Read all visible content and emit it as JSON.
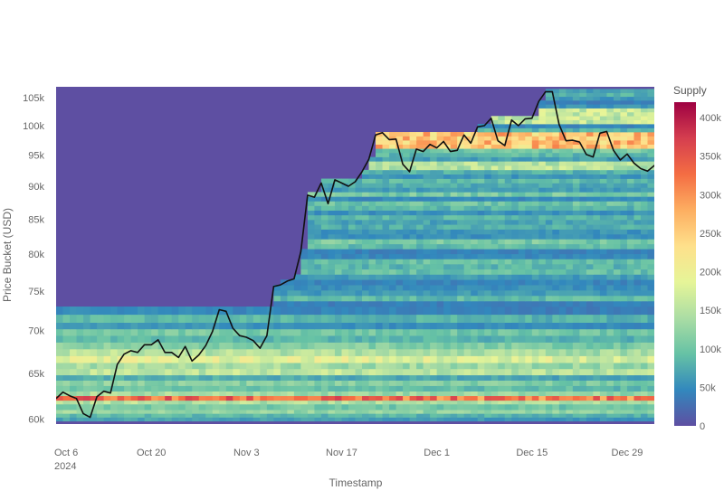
{
  "chart_data": {
    "type": "heatmap",
    "title": "",
    "xlabel": "Timestamp",
    "ylabel": "Price Bucket (USD)",
    "x_range": [
      "2024-10-06",
      "2025-01-02"
    ],
    "y_range": [
      59500,
      107000
    ],
    "y_scale": "log",
    "x_ticks": [
      {
        "date": "2024-10-06",
        "label": "Oct 6",
        "sublabel": "2024"
      },
      {
        "date": "2024-10-20",
        "label": "Oct 20",
        "sublabel": ""
      },
      {
        "date": "2024-11-03",
        "label": "Nov 3",
        "sublabel": ""
      },
      {
        "date": "2024-11-17",
        "label": "Nov 17",
        "sublabel": ""
      },
      {
        "date": "2024-12-01",
        "label": "Dec 1",
        "sublabel": ""
      },
      {
        "date": "2024-12-15",
        "label": "Dec 15",
        "sublabel": ""
      },
      {
        "date": "2024-12-29",
        "label": "Dec 29",
        "sublabel": ""
      }
    ],
    "y_ticks": [
      {
        "value": 60000,
        "label": "60k"
      },
      {
        "value": 65000,
        "label": "65k"
      },
      {
        "value": 70000,
        "label": "70k"
      },
      {
        "value": 75000,
        "label": "75k"
      },
      {
        "value": 80000,
        "label": "80k"
      },
      {
        "value": 85000,
        "label": "85k"
      },
      {
        "value": 90000,
        "label": "90k"
      },
      {
        "value": 95000,
        "label": "95k"
      },
      {
        "value": 100000,
        "label": "100k"
      },
      {
        "value": 105000,
        "label": "105k"
      }
    ],
    "colorbar": {
      "title": "Supply",
      "min": 0,
      "max": 420000,
      "colors": [
        "#5e4fa2",
        "#3288bd",
        "#66c2a5",
        "#abdda4",
        "#e6f598",
        "#fee08b",
        "#fdae61",
        "#f46d43",
        "#d53e4f",
        "#9e0142"
      ],
      "ticks": [
        {
          "value": 0,
          "label": "0"
        },
        {
          "value": 50000,
          "label": "50k"
        },
        {
          "value": 100000,
          "label": "100k"
        },
        {
          "value": 150000,
          "label": "150k"
        },
        {
          "value": 200000,
          "label": "200k"
        },
        {
          "value": 250000,
          "label": "250k"
        },
        {
          "value": 300000,
          "label": "300k"
        },
        {
          "value": 350000,
          "label": "350k"
        },
        {
          "value": 400000,
          "label": "400k"
        }
      ]
    },
    "price_line": {
      "color": "#111111",
      "points": [
        [
          "2024-10-06",
          62200
        ],
        [
          "2024-10-07",
          62900
        ],
        [
          "2024-10-08",
          62500
        ],
        [
          "2024-10-09",
          62200
        ],
        [
          "2024-10-10",
          60600
        ],
        [
          "2024-10-11",
          60200
        ],
        [
          "2024-10-12",
          62400
        ],
        [
          "2024-10-13",
          63000
        ],
        [
          "2024-10-14",
          62800
        ],
        [
          "2024-10-15",
          66000
        ],
        [
          "2024-10-16",
          67200
        ],
        [
          "2024-10-17",
          67600
        ],
        [
          "2024-10-18",
          67400
        ],
        [
          "2024-10-19",
          68300
        ],
        [
          "2024-10-20",
          68300
        ],
        [
          "2024-10-21",
          68900
        ],
        [
          "2024-10-22",
          67400
        ],
        [
          "2024-10-23",
          67400
        ],
        [
          "2024-10-24",
          66800
        ],
        [
          "2024-10-25",
          68100
        ],
        [
          "2024-10-26",
          66400
        ],
        [
          "2024-10-27",
          67100
        ],
        [
          "2024-10-28",
          68200
        ],
        [
          "2024-10-29",
          69900
        ],
        [
          "2024-10-30",
          72600
        ],
        [
          "2024-10-31",
          72400
        ],
        [
          "2024-11-01",
          70300
        ],
        [
          "2024-11-02",
          69400
        ],
        [
          "2024-11-03",
          69200
        ],
        [
          "2024-11-04",
          68800
        ],
        [
          "2024-11-05",
          67900
        ],
        [
          "2024-11-06",
          69400
        ],
        [
          "2024-11-07",
          75600
        ],
        [
          "2024-11-08",
          75800
        ],
        [
          "2024-11-09",
          76300
        ],
        [
          "2024-11-10",
          76600
        ],
        [
          "2024-11-11",
          80300
        ],
        [
          "2024-11-12",
          88600
        ],
        [
          "2024-11-13",
          88300
        ],
        [
          "2024-11-14",
          90500
        ],
        [
          "2024-11-15",
          87300
        ],
        [
          "2024-11-16",
          91000
        ],
        [
          "2024-11-17",
          90500
        ],
        [
          "2024-11-18",
          90000
        ],
        [
          "2024-11-19",
          90700
        ],
        [
          "2024-11-20",
          92300
        ],
        [
          "2024-11-21",
          94300
        ],
        [
          "2024-11-22",
          98400
        ],
        [
          "2024-11-23",
          98800
        ],
        [
          "2024-11-24",
          97600
        ],
        [
          "2024-11-25",
          97700
        ],
        [
          "2024-11-26",
          93500
        ],
        [
          "2024-11-27",
          92300
        ],
        [
          "2024-11-28",
          96000
        ],
        [
          "2024-11-29",
          95600
        ],
        [
          "2024-11-30",
          96800
        ],
        [
          "2024-12-01",
          96200
        ],
        [
          "2024-12-02",
          97300
        ],
        [
          "2024-12-03",
          95600
        ],
        [
          "2024-12-04",
          95800
        ],
        [
          "2024-12-05",
          98400
        ],
        [
          "2024-12-06",
          97000
        ],
        [
          "2024-12-07",
          99800
        ],
        [
          "2024-12-08",
          100000
        ],
        [
          "2024-12-09",
          101300
        ],
        [
          "2024-12-10",
          97400
        ],
        [
          "2024-12-11",
          96600
        ],
        [
          "2024-12-12",
          101000
        ],
        [
          "2024-12-13",
          100000
        ],
        [
          "2024-12-14",
          101200
        ],
        [
          "2024-12-15",
          101300
        ],
        [
          "2024-12-16",
          104300
        ],
        [
          "2024-12-17",
          106100
        ],
        [
          "2024-12-18",
          106100
        ],
        [
          "2024-12-19",
          100200
        ],
        [
          "2024-12-20",
          97400
        ],
        [
          "2024-12-21",
          97500
        ],
        [
          "2024-12-22",
          97200
        ],
        [
          "2024-12-23",
          95100
        ],
        [
          "2024-12-24",
          94700
        ],
        [
          "2024-12-25",
          98700
        ],
        [
          "2024-12-26",
          99000
        ],
        [
          "2024-12-27",
          95800
        ],
        [
          "2024-12-28",
          94200
        ],
        [
          "2024-12-29",
          95200
        ],
        [
          "2024-12-30",
          93700
        ],
        [
          "2024-12-31",
          92800
        ],
        [
          "2025-01-01",
          92400
        ],
        [
          "2025-01-02",
          93300
        ],
        [
          "2025-01-03",
          94300
        ],
        [
          "2025-01-04",
          96500
        ]
      ]
    },
    "heatmap_bands": [
      {
        "y0": 59800,
        "y1": 60200,
        "supply": 70000
      },
      {
        "y0": 60200,
        "y1": 60600,
        "supply": 90000
      },
      {
        "y0": 60600,
        "y1": 61000,
        "supply": 130000
      },
      {
        "y0": 61000,
        "y1": 61600,
        "supply": 110000
      },
      {
        "y0": 61600,
        "y1": 62000,
        "supply": 150000
      },
      {
        "y0": 62000,
        "y1": 62500,
        "supply": 330000
      },
      {
        "y0": 62500,
        "y1": 63000,
        "supply": 140000
      },
      {
        "y0": 63000,
        "y1": 63600,
        "supply": 100000
      },
      {
        "y0": 63600,
        "y1": 64200,
        "supply": 120000
      },
      {
        "y0": 64200,
        "y1": 64800,
        "supply": 80000
      },
      {
        "y0": 64800,
        "y1": 65500,
        "supply": 160000
      },
      {
        "y0": 65500,
        "y1": 66200,
        "supply": 140000
      },
      {
        "y0": 66200,
        "y1": 67000,
        "supply": 190000
      },
      {
        "y0": 67000,
        "y1": 67800,
        "supply": 150000
      },
      {
        "y0": 67800,
        "y1": 68600,
        "supply": 120000
      },
      {
        "y0": 68600,
        "y1": 69400,
        "supply": 90000
      },
      {
        "y0": 69400,
        "y1": 70200,
        "supply": 110000
      },
      {
        "y0": 70200,
        "y1": 71000,
        "supply": 60000
      },
      {
        "y0": 71000,
        "y1": 72000,
        "supply": 90000
      },
      {
        "y0": 72000,
        "y1": 73000,
        "supply": 50000
      }
    ]
  }
}
